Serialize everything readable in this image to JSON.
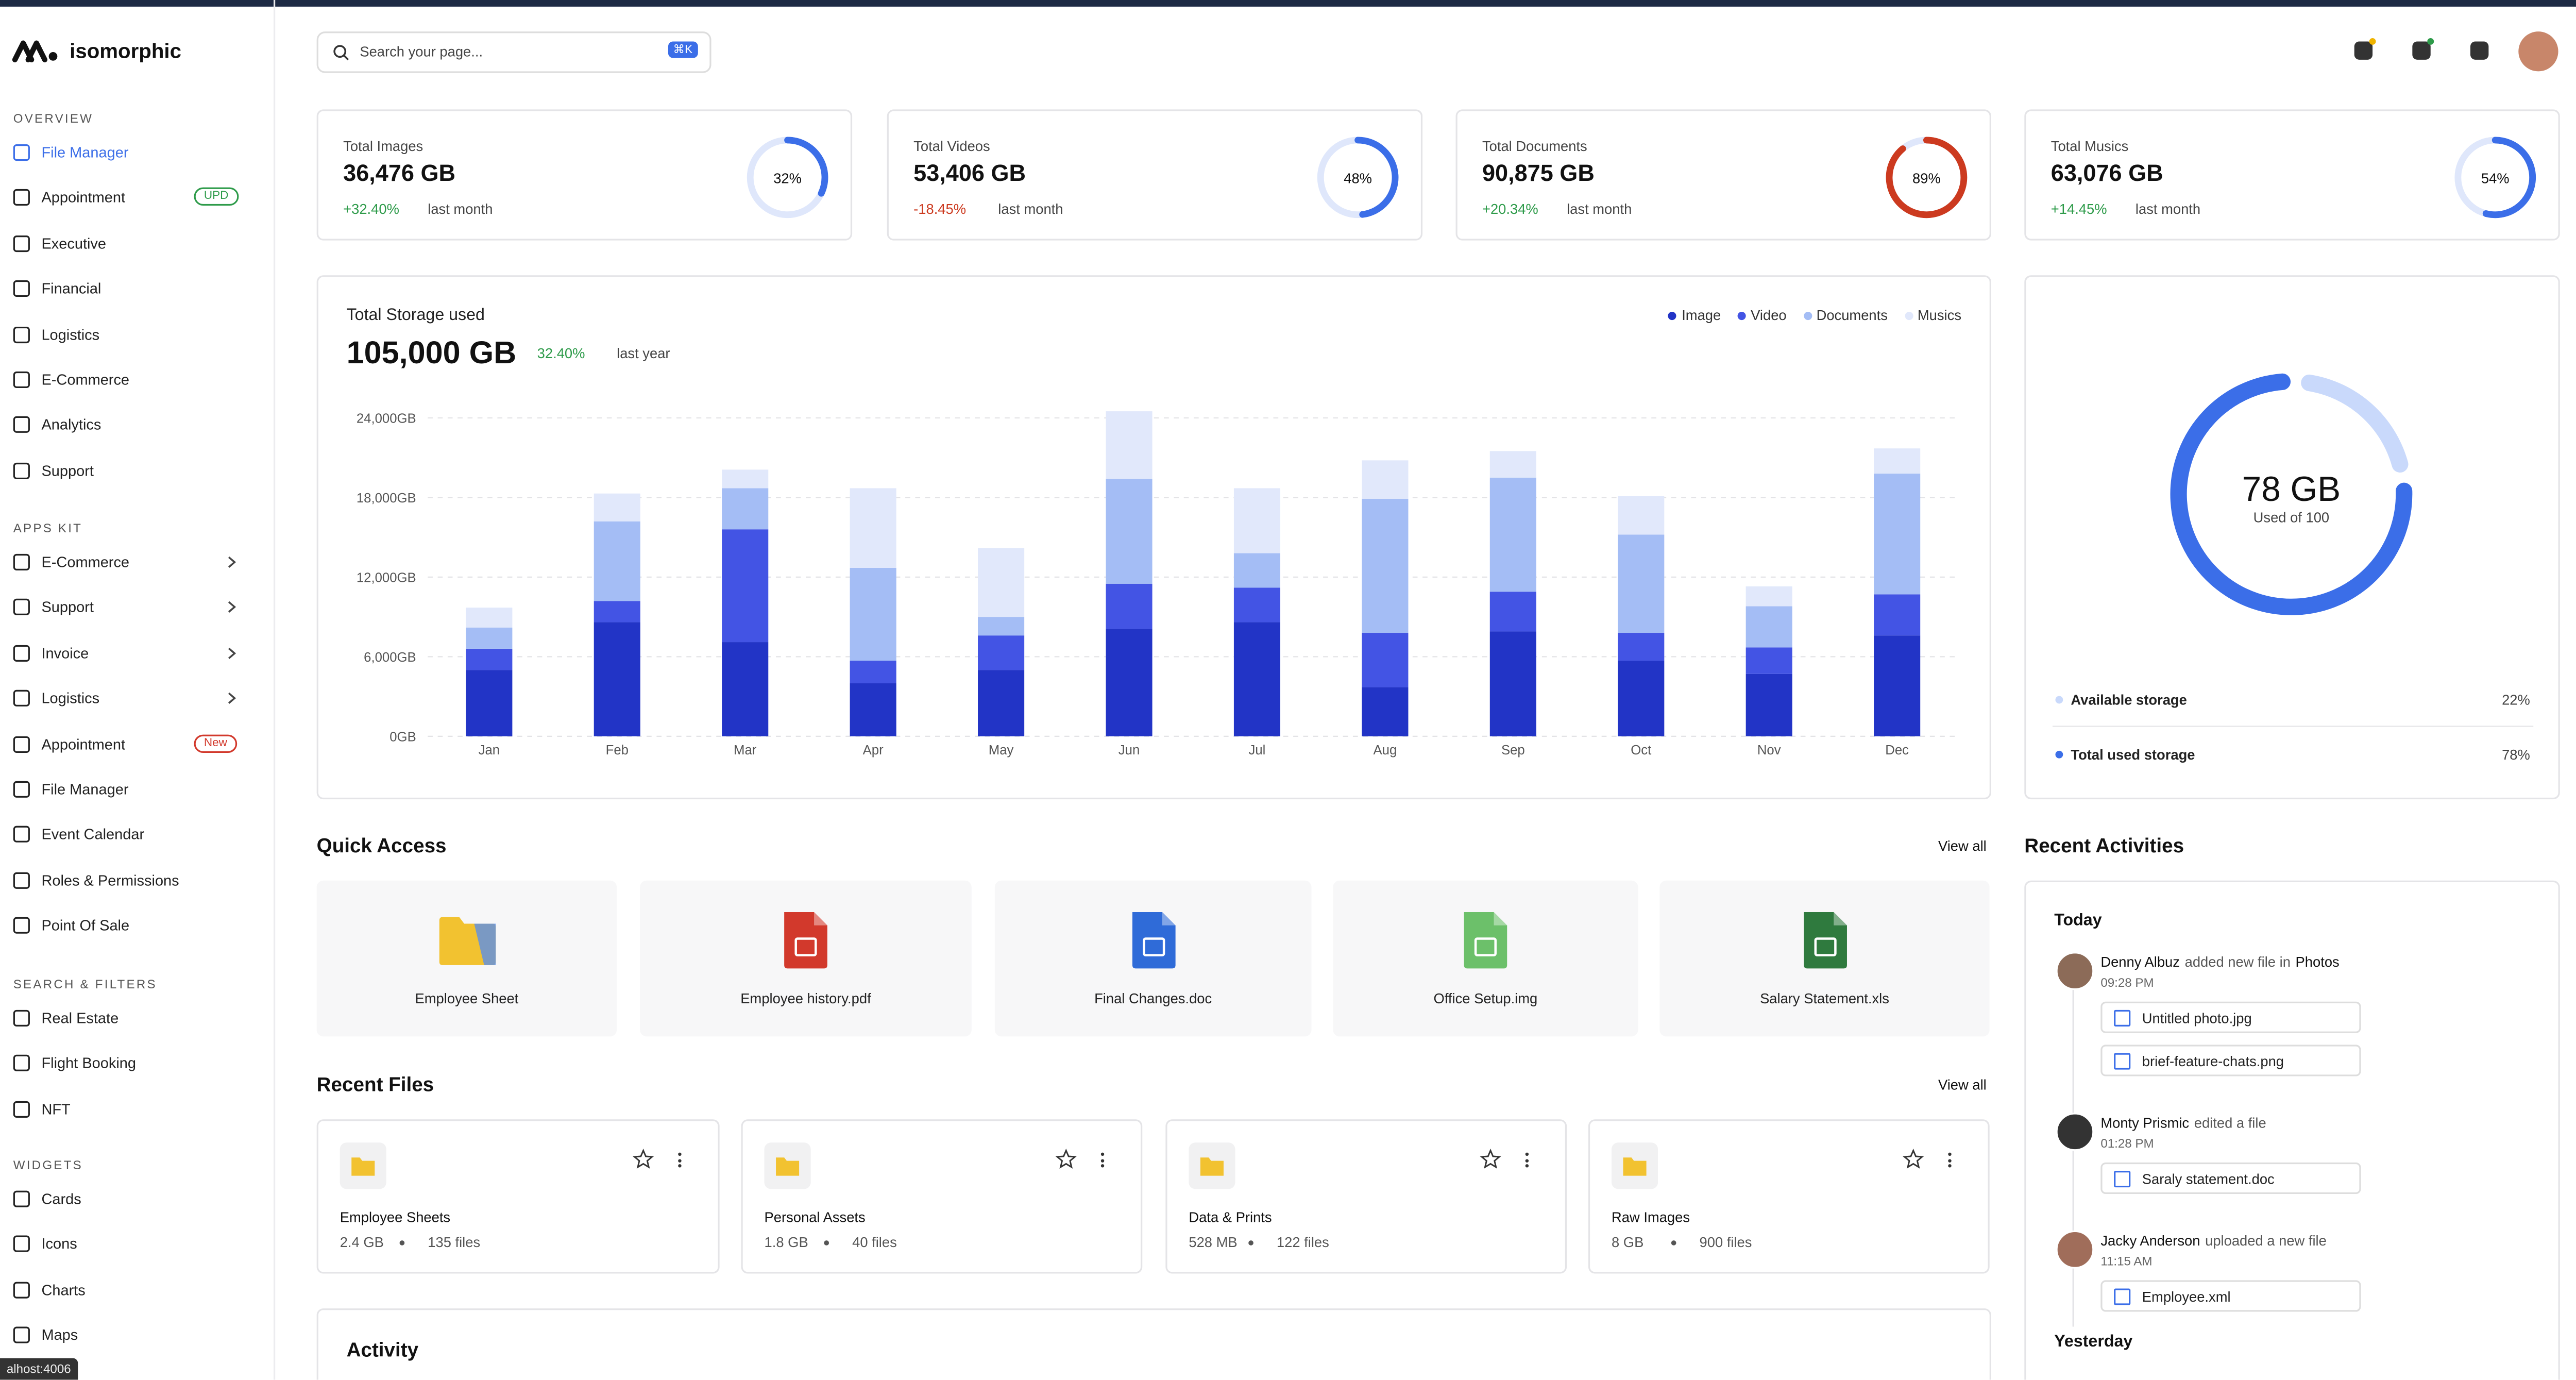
{
  "brand": "isomorphic",
  "search": {
    "placeholder": "Search your page...",
    "shortcut": "⌘K"
  },
  "sidebar": [
    {
      "title": "OVERVIEW",
      "items": [
        {
          "label": "File Manager",
          "active": true
        },
        {
          "label": "Appointment",
          "badge": "UPD"
        },
        {
          "label": "Executive"
        },
        {
          "label": "Financial"
        },
        {
          "label": "Logistics"
        },
        {
          "label": "E-Commerce"
        },
        {
          "label": "Analytics"
        },
        {
          "label": "Support"
        }
      ]
    },
    {
      "title": "APPS KIT",
      "items": [
        {
          "label": "E-Commerce",
          "arrow": true
        },
        {
          "label": "Support",
          "arrow": true
        },
        {
          "label": "Invoice",
          "arrow": true
        },
        {
          "label": "Logistics",
          "arrow": true
        },
        {
          "label": "Appointment",
          "badge": "New"
        },
        {
          "label": "File Manager"
        },
        {
          "label": "Event Calendar"
        },
        {
          "label": "Roles & Permissions"
        },
        {
          "label": "Point Of Sale"
        }
      ]
    },
    {
      "title": "SEARCH & FILTERS",
      "items": [
        {
          "label": "Real Estate"
        },
        {
          "label": "Flight Booking"
        },
        {
          "label": "NFT"
        }
      ]
    },
    {
      "title": "WIDGETS",
      "items": [
        {
          "label": "Cards"
        },
        {
          "label": "Icons"
        },
        {
          "label": "Charts"
        },
        {
          "label": "Maps"
        }
      ]
    }
  ],
  "stats": [
    {
      "title": "Total Images",
      "value": "36,476 GB",
      "change": "+32.40%",
      "change_color": "#2e9b4a",
      "period": "last month",
      "percent": 32,
      "percent_label": "32%",
      "color": "#3b6ee8"
    },
    {
      "title": "Total Videos",
      "value": "53,406 GB",
      "change": "-18.45%",
      "change_color": "#cc3a1f",
      "period": "last month",
      "percent": 48,
      "percent_label": "48%",
      "color": "#3b6ee8"
    },
    {
      "title": "Total Documents",
      "value": "90,875 GB",
      "change": "+20.34%",
      "change_color": "#2e9b4a",
      "period": "last month",
      "percent": 89,
      "percent_label": "89%",
      "color": "#cc3a1f"
    },
    {
      "title": "Total Musics",
      "value": "63,076 GB",
      "change": "+14.45%",
      "change_color": "#2e9b4a",
      "period": "last month",
      "percent": 54,
      "percent_label": "54%",
      "color": "#3b6ee8"
    }
  ],
  "chart_data": {
    "type": "stacked-bar",
    "title": "Total Storage used",
    "total": "105,000 GB",
    "change": "32.40%",
    "period": "last year",
    "categories": [
      "Jan",
      "Feb",
      "Mar",
      "Apr",
      "May",
      "Jun",
      "Jul",
      "Aug",
      "Sep",
      "Oct",
      "Nov",
      "Dec"
    ],
    "series": [
      {
        "name": "Image",
        "color": "#2234c6",
        "values": [
          5000,
          8600,
          7100,
          4000,
          5000,
          8100,
          8600,
          3700,
          7900,
          5700,
          4700,
          7600
        ]
      },
      {
        "name": "Video",
        "color": "#4354e4",
        "values": [
          1600,
          1600,
          8500,
          1700,
          2600,
          3400,
          2600,
          4100,
          3000,
          2100,
          2000,
          3100
        ]
      },
      {
        "name": "Documents",
        "color": "#a4bdf5",
        "values": [
          1600,
          6000,
          3100,
          7000,
          1400,
          7900,
          2600,
          10100,
          8600,
          7400,
          3100,
          9100
        ]
      },
      {
        "name": "Musics",
        "color": "#e1e8fb",
        "values": [
          1500,
          2100,
          1400,
          6000,
          5200,
          5100,
          4900,
          2900,
          2000,
          2900,
          1500,
          1900
        ]
      }
    ],
    "ylim": [
      0,
      24000
    ],
    "yticks": [
      {
        "value": 0,
        "label": "0GB"
      },
      {
        "value": 6000,
        "label": "6,000GB"
      },
      {
        "value": 12000,
        "label": "12,000GB"
      },
      {
        "value": 18000,
        "label": "18,000GB"
      },
      {
        "value": 24000,
        "label": "24,000GB"
      }
    ],
    "grid": true,
    "legend": "top-right"
  },
  "storage": {
    "center_label": "78 GB",
    "caption": "Used of 100",
    "items": [
      {
        "label": "Available storage",
        "value": 22,
        "value_label": "22%",
        "color": "#c9d9fb"
      },
      {
        "label": "Total used storage",
        "value": 78,
        "value_label": "78%",
        "color": "#3b6ee8"
      }
    ]
  },
  "quick_access": {
    "title": "Quick Access",
    "view_all": "View all",
    "files": [
      {
        "name": "Employee Sheet",
        "icon": "folder",
        "color": "#f2c230"
      },
      {
        "name": "Employee history.pdf",
        "icon": "file",
        "color": "#d2392c"
      },
      {
        "name": "Final Changes.doc",
        "icon": "file",
        "color": "#2f6bd8"
      },
      {
        "name": "Office Setup.img",
        "icon": "file",
        "color": "#6cc06a"
      },
      {
        "name": "Salary Statement.xls",
        "icon": "file",
        "color": "#2f7a3e"
      }
    ]
  },
  "recent_files": {
    "title": "Recent Files",
    "view_all": "View all",
    "folders": [
      {
        "name": "Employee Sheets",
        "size": "2.4 GB",
        "files": "135 files"
      },
      {
        "name": "Personal Assets",
        "size": "1.8 GB",
        "files": "40 files"
      },
      {
        "name": "Data & Prints",
        "size": "528 MB",
        "files": "122 files"
      },
      {
        "name": "Raw Images",
        "size": "8 GB",
        "files": "900 files"
      }
    ]
  },
  "activity_title": "Activity",
  "recent_activities": {
    "title": "Recent Activities",
    "today": "Today",
    "yesterday": "Yesterday",
    "items": [
      {
        "user": "Denny Albuz",
        "action": "added new file in",
        "target": "Photos",
        "time": "09:28 PM",
        "files": [
          "Untitled photo.jpg",
          "brief-feature-chats.png"
        ]
      },
      {
        "user": "Monty Prismic",
        "action": "edited a file",
        "time": "01:28 PM",
        "files": [
          "Saraly statement.doc"
        ]
      },
      {
        "user": "Jacky Anderson",
        "action": "uploaded a new file",
        "time": "11:15 AM",
        "files": [
          "Employee.xml"
        ]
      }
    ]
  },
  "status_url": "alhost:4006"
}
